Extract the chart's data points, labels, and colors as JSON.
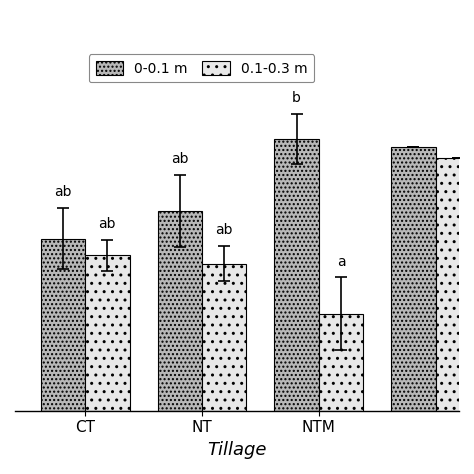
{
  "groups": [
    "CT",
    "NT",
    "NTM",
    ""
  ],
  "bar1_values": [
    310,
    360,
    490,
    475
  ],
  "bar2_values": [
    280,
    265,
    175,
    455
  ],
  "bar1_errors": [
    55,
    65,
    45,
    0
  ],
  "bar2_errors": [
    28,
    32,
    65,
    0
  ],
  "bar1_label": "0-0.1 m",
  "bar2_label": "0.1-0.3 m",
  "bar1_letters": [
    "ab",
    "ab",
    "b",
    ""
  ],
  "bar2_letters": [
    "ab",
    "ab",
    "a",
    ""
  ],
  "xlabel": "Tillage",
  "ylabel": "",
  "ylim": [
    0,
    580
  ],
  "bar_width": 0.38,
  "bar1_hatch": "....",
  "bar2_hatch": "..",
  "bar1_facecolor": "#b8b8b8",
  "bar2_facecolor": "#e8e8e8",
  "edgecolor": "#000000",
  "background_color": "#ffffff",
  "letter_fontsize": 10,
  "axis_fontsize": 13,
  "tick_fontsize": 11
}
